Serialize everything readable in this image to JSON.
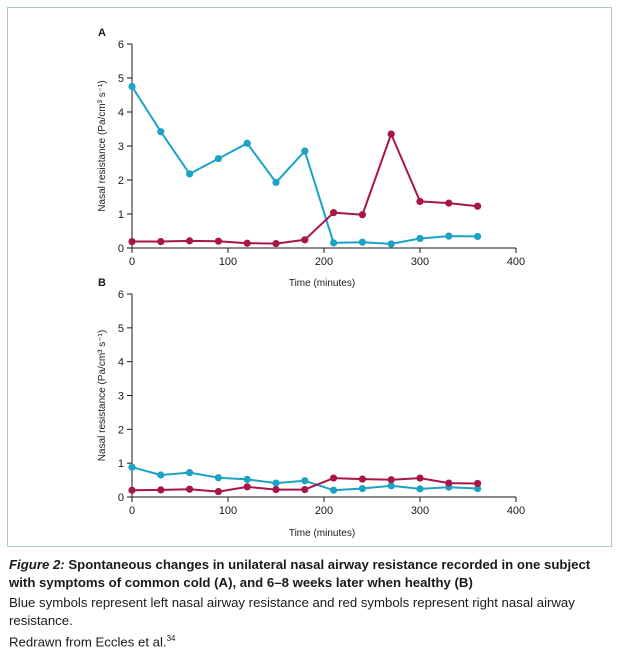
{
  "colors": {
    "left": "#1ba3c6",
    "right": "#a8154a",
    "frame": "#a8cfc6",
    "axis": "#1a1a1a"
  },
  "caption": {
    "figure_label": "Figure 2:",
    "title": "Spontaneous changes in unilateral nasal airway resistance recorded in one subject with symptoms of common cold (A), and 6–8 weeks later when healthy (B)",
    "line1": "Blue symbols represent left nasal airway resistance and red symbols represent right nasal airway resistance.",
    "line2_text": "Redrawn from Eccles et al.",
    "line2_ref": "34"
  },
  "chart_data": [
    {
      "panel": "A",
      "type": "line",
      "xlabel": "Time (minutes)",
      "ylabel": "Nasal resistance (Pa/cm³ s⁻¹)",
      "xlim": [
        0,
        400
      ],
      "ylim": [
        0,
        6
      ],
      "xticks": [
        0,
        100,
        200,
        300,
        400
      ],
      "yticks": [
        0,
        1,
        2,
        3,
        4,
        5,
        6
      ],
      "series": [
        {
          "color": "left",
          "x": [
            0,
            30,
            60,
            90,
            120,
            150,
            180,
            210,
            240,
            270,
            300,
            330,
            360
          ],
          "y": [
            4.75,
            3.42,
            2.18,
            2.63,
            3.08,
            1.93,
            2.85,
            0.15,
            0.17,
            0.12,
            0.28,
            0.35,
            0.34
          ]
        },
        {
          "color": "right",
          "x": [
            0,
            30,
            60,
            90,
            120,
            150,
            180,
            210,
            240,
            270,
            300,
            330,
            360
          ],
          "y": [
            0.19,
            0.19,
            0.21,
            0.2,
            0.14,
            0.13,
            0.24,
            1.04,
            0.98,
            3.35,
            1.37,
            1.32,
            1.23
          ]
        }
      ]
    },
    {
      "panel": "B",
      "type": "line",
      "xlabel": "Time (minutes)",
      "ylabel": "Nasal resistance (Pa/cm³ s⁻¹)",
      "xlim": [
        0,
        400
      ],
      "ylim": [
        0,
        6
      ],
      "xticks": [
        0,
        100,
        200,
        300,
        400
      ],
      "yticks": [
        0,
        1,
        2,
        3,
        4,
        5,
        6
      ],
      "series": [
        {
          "color": "left",
          "x": [
            0,
            30,
            60,
            90,
            120,
            150,
            180,
            210,
            240,
            270,
            300,
            330,
            360
          ],
          "y": [
            0.88,
            0.65,
            0.72,
            0.57,
            0.52,
            0.41,
            0.48,
            0.2,
            0.25,
            0.33,
            0.24,
            0.29,
            0.25
          ]
        },
        {
          "color": "right",
          "x": [
            0,
            30,
            60,
            90,
            120,
            150,
            180,
            210,
            240,
            270,
            300,
            330,
            360
          ],
          "y": [
            0.2,
            0.21,
            0.23,
            0.16,
            0.3,
            0.22,
            0.22,
            0.56,
            0.53,
            0.51,
            0.56,
            0.41,
            0.4
          ]
        }
      ]
    }
  ]
}
